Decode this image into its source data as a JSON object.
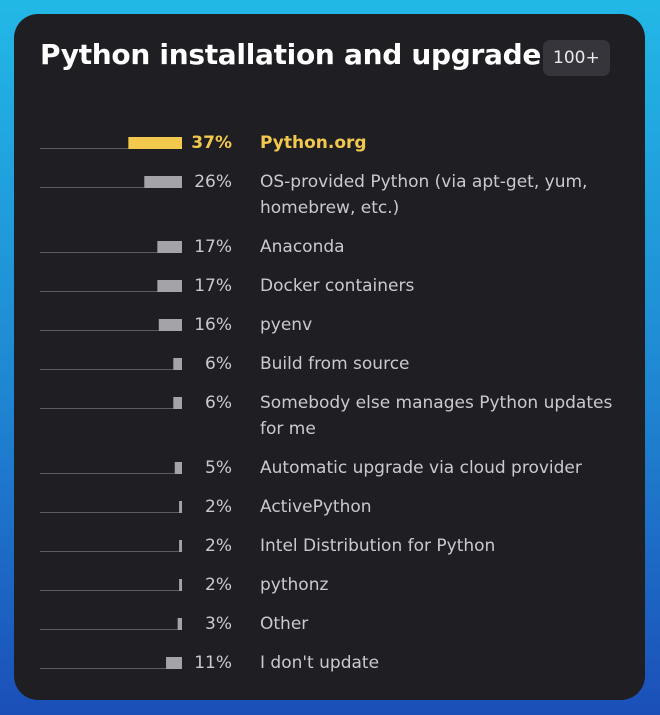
{
  "header": {
    "title": "Python installation and upgrade",
    "badge": "100+"
  },
  "colors": {
    "highlight": "#f2c94c",
    "bar": "#a3a3a8",
    "baseline": "#5b5b60"
  },
  "chart_data": {
    "type": "bar",
    "orientation": "horizontal",
    "title": "Python installation and upgrade",
    "categories": [
      "Python.org",
      "OS-provided Python (via apt-get, yum, homebrew, etc.)",
      "Anaconda",
      "Docker containers",
      "pyenv",
      "Build from source",
      "Somebody else manages Python updates for me",
      "Automatic upgrade via cloud provider",
      "ActivePython",
      "Intel Distribution for Python",
      "pythonz",
      "Other",
      "I don't update"
    ],
    "values": [
      37,
      26,
      17,
      17,
      16,
      6,
      6,
      5,
      2,
      2,
      2,
      3,
      11
    ],
    "value_labels": [
      "37%",
      "26%",
      "17%",
      "17%",
      "16%",
      "6%",
      "6%",
      "5%",
      "2%",
      "2%",
      "2%",
      "3%",
      "11%"
    ],
    "highlighted_index": 0,
    "unit": "%",
    "xlim": [
      0,
      100
    ]
  }
}
